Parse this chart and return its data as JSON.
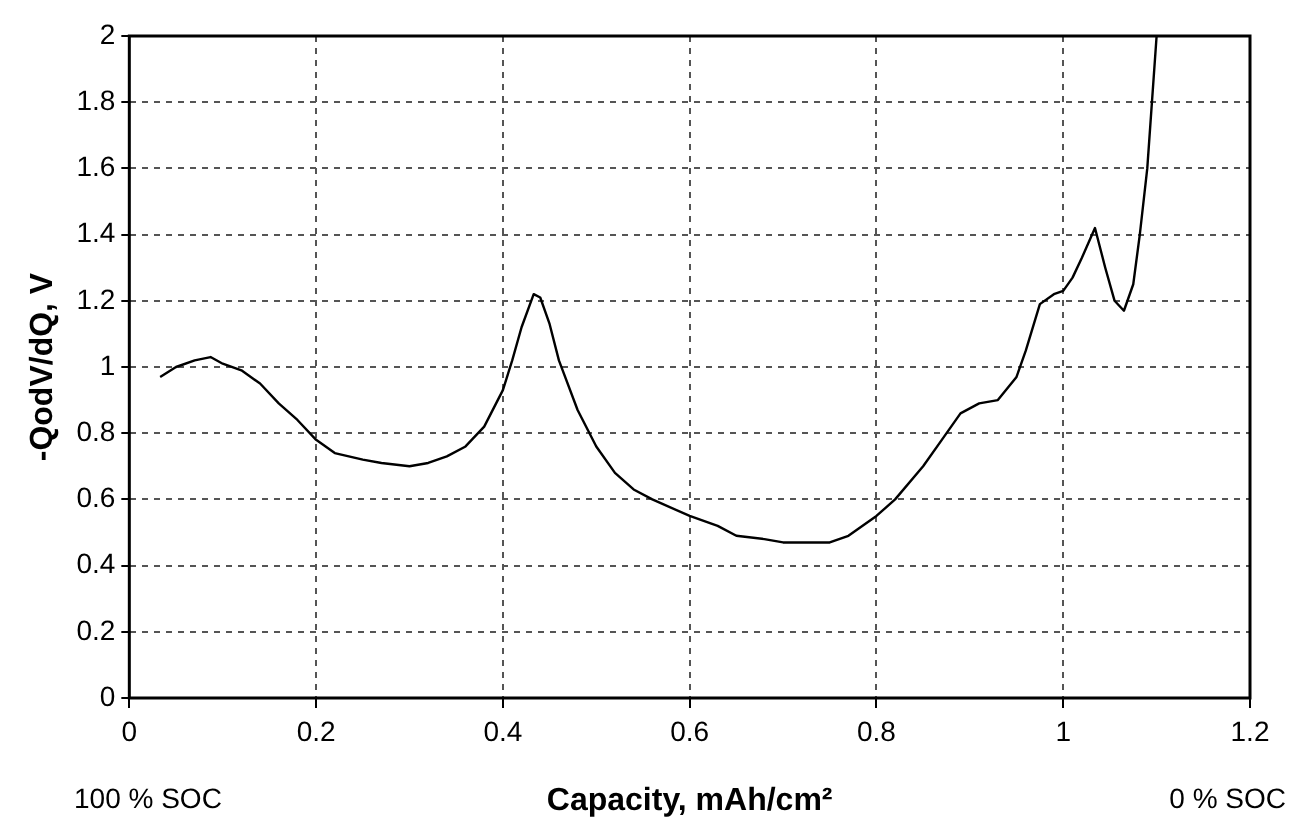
{
  "chart_data": {
    "type": "line",
    "xlabel": "Capacity, mAh/cm²",
    "ylabel": "-QodV/dQ, V",
    "annotations": [
      "100 % SOC",
      "0 % SOC"
    ],
    "series": [
      {
        "color": "#000000",
        "x": [
          0.033,
          0.05,
          0.07,
          0.087,
          0.1,
          0.12,
          0.14,
          0.16,
          0.18,
          0.2,
          0.22,
          0.25,
          0.27,
          0.3,
          0.32,
          0.34,
          0.36,
          0.38,
          0.4,
          0.41,
          0.42,
          0.433,
          0.44,
          0.45,
          0.46,
          0.48,
          0.5,
          0.52,
          0.54,
          0.56,
          0.6,
          0.63,
          0.65,
          0.68,
          0.7,
          0.72,
          0.75,
          0.77,
          0.8,
          0.82,
          0.85,
          0.87,
          0.89,
          0.91,
          0.93,
          0.95,
          0.96,
          0.975,
          0.99,
          1.0,
          1.01,
          1.02,
          1.034,
          1.045,
          1.055,
          1.065,
          1.075,
          1.082,
          1.09,
          1.1
        ],
        "values": [
          0.97,
          1.0,
          1.02,
          1.03,
          1.01,
          0.99,
          0.95,
          0.89,
          0.84,
          0.78,
          0.74,
          0.72,
          0.71,
          0.7,
          0.71,
          0.73,
          0.76,
          0.82,
          0.93,
          1.02,
          1.12,
          1.22,
          1.21,
          1.13,
          1.02,
          0.87,
          0.76,
          0.68,
          0.63,
          0.6,
          0.55,
          0.52,
          0.49,
          0.48,
          0.47,
          0.47,
          0.47,
          0.49,
          0.55,
          0.6,
          0.7,
          0.78,
          0.86,
          0.89,
          0.9,
          0.97,
          1.05,
          1.19,
          1.22,
          1.23,
          1.27,
          1.33,
          1.42,
          1.3,
          1.2,
          1.17,
          1.25,
          1.4,
          1.6,
          2.0
        ]
      }
    ],
    "xlim": [
      0,
      1.2
    ],
    "xticks": [
      0,
      0.2,
      0.4,
      0.6,
      0.8,
      1,
      1.2
    ],
    "ylim": [
      0,
      2
    ],
    "yticks": [
      0,
      0.2,
      0.4,
      0.6,
      0.8,
      1,
      1.2,
      1.4,
      1.6,
      1.8,
      2
    ],
    "grid": true,
    "marker": "none",
    "line_style": "solid",
    "legend": false
  }
}
